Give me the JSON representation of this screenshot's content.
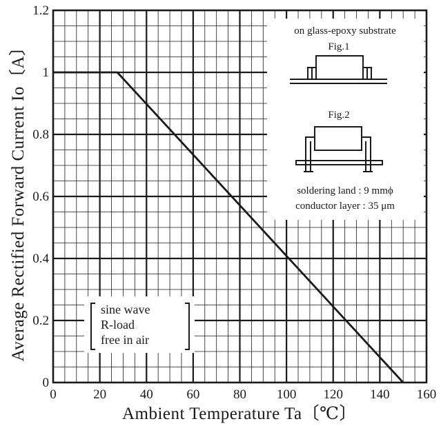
{
  "chart_data": {
    "type": "line",
    "title": "",
    "xlabel": "Ambient Temperature Ta〔℃〕",
    "ylabel": "Average Rectified Forward Current Io〔A〕",
    "xlim": [
      0,
      160
    ],
    "ylim": [
      0,
      1.2
    ],
    "grid": true,
    "x_major_ticks": [
      0,
      20,
      40,
      60,
      80,
      100,
      120,
      140,
      160
    ],
    "x_tick_labels": [
      "0",
      "20",
      "40",
      "60",
      "80",
      "100",
      "120",
      "140",
      "160"
    ],
    "y_major_ticks": [
      0,
      0.2,
      0.4,
      0.6,
      0.8,
      1.0,
      1.2
    ],
    "y_tick_labels": [
      "0",
      "0.2",
      "0.4",
      "0.6",
      "0.8",
      "1",
      "1.2"
    ],
    "x_minor_step": 5,
    "y_minor_step": 0.05,
    "series": [
      {
        "name": "",
        "color": "#1a1a1a",
        "x": [
          0,
          27.5,
          150
        ],
        "y": [
          1.0,
          1.0,
          0.0
        ]
      }
    ],
    "annotations": {
      "substrate_title": "on glass-epoxy substrate",
      "fig1_label": "Fig.1",
      "fig2_label": "Fig.2",
      "soldering_land": "soldering land : 9 mmϕ",
      "conductor_layer": "conductor layer : 35 μm",
      "conditions": [
        "sine wave",
        "R-load",
        "free in air"
      ]
    }
  }
}
